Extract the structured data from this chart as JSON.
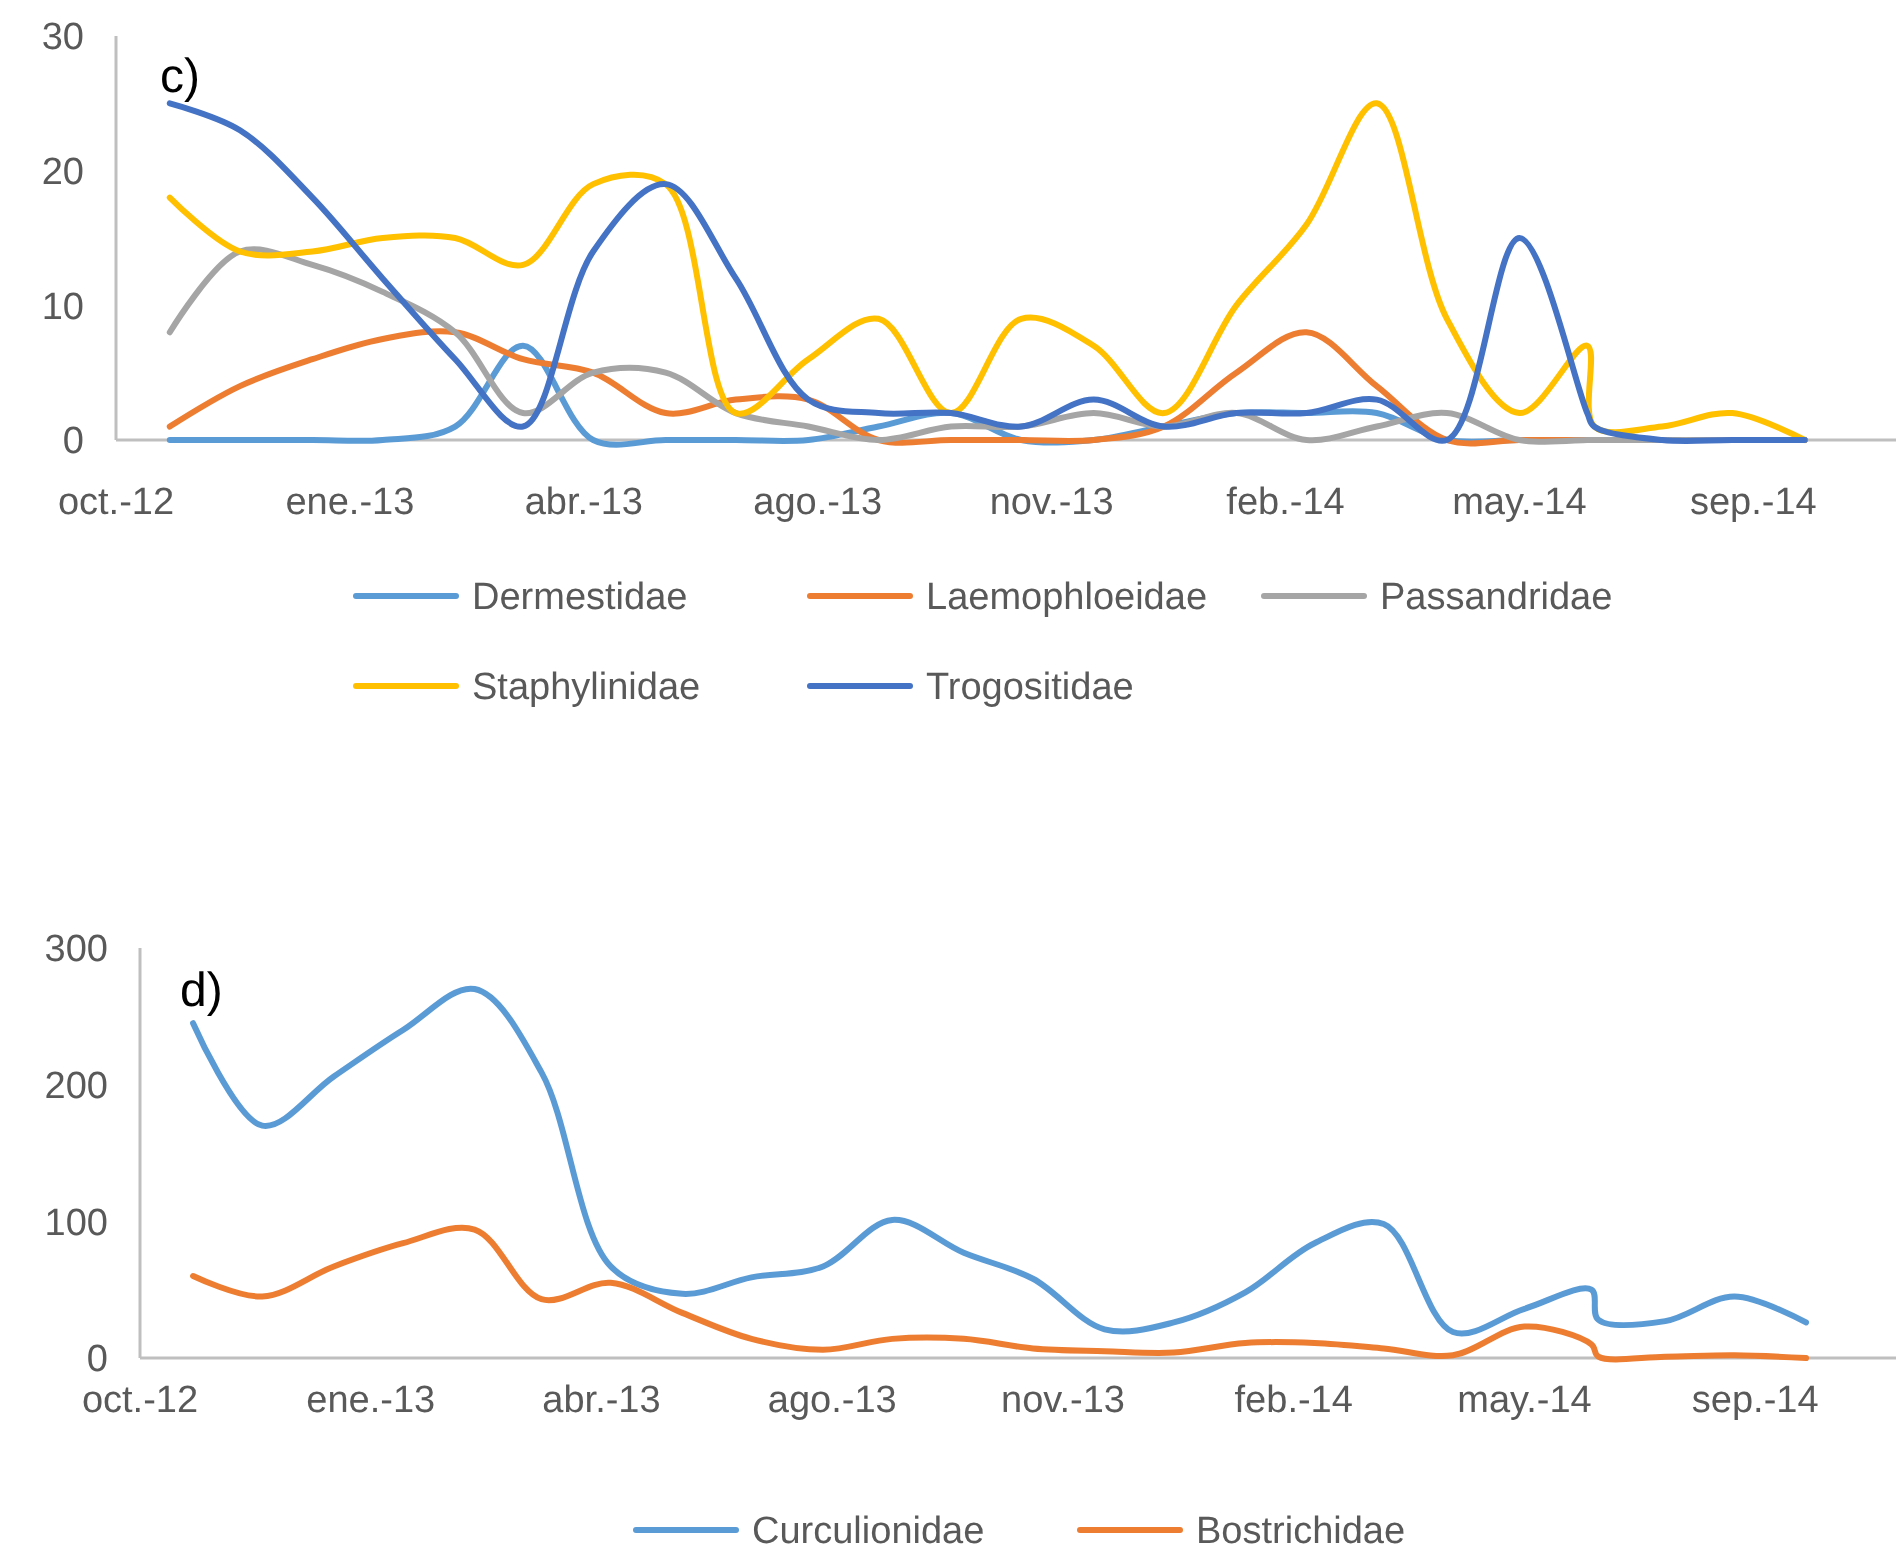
{
  "chart_data": [
    {
      "type": "line",
      "title": "c)",
      "x": [
        "2012-10-29",
        "2012-11-28",
        "2012-12-29",
        "2013-01-28",
        "2013-02-28",
        "2013-03-29",
        "2013-04-28",
        "2013-05-29",
        "2013-06-28",
        "2013-07-29",
        "2013-08-28",
        "2013-09-28",
        "2013-10-28",
        "2013-11-28",
        "2013-12-28",
        "2014-01-28",
        "2014-02-27",
        "2014-03-29",
        "2014-04-28",
        "2014-05-29",
        "2014-06-27",
        "2014-06-30",
        "2014-07-29",
        "2014-08-28",
        "2014-09-28"
      ],
      "series": [
        {
          "name": "Dermestidae",
          "color": "#5b9bd5",
          "values": [
            0,
            0,
            0,
            0,
            1,
            7,
            0,
            0,
            0,
            0,
            1,
            2,
            0,
            0,
            1,
            2,
            2,
            2,
            0,
            0,
            0,
            0,
            0,
            0,
            0
          ]
        },
        {
          "name": "Laemophloeidae",
          "color": "#ed7d31",
          "values": [
            1,
            4,
            6,
            7.5,
            8,
            6,
            5,
            2,
            3,
            3,
            0,
            0,
            0,
            0,
            1,
            5,
            8,
            4,
            0,
            0,
            0,
            0,
            0,
            0,
            0
          ]
        },
        {
          "name": "Passandridae",
          "color": "#a5a5a5",
          "values": [
            8,
            14,
            13,
            11,
            8,
            2,
            5,
            5,
            2,
            1,
            0,
            1,
            1,
            2,
            1,
            2,
            0,
            1,
            2,
            0,
            0,
            0,
            0,
            0,
            0
          ]
        },
        {
          "name": "Staphylinidae",
          "color": "#ffc000",
          "values": [
            18,
            14,
            14,
            15,
            15,
            13,
            19,
            19,
            2,
            6,
            9,
            2,
            9,
            7,
            2,
            10,
            16,
            25,
            9,
            2,
            7,
            1,
            1,
            2,
            0
          ]
        },
        {
          "name": "Trogositidae",
          "color": "#4472c4",
          "values": [
            25,
            23,
            18,
            12,
            6,
            1,
            14,
            19,
            12,
            3,
            2,
            2,
            1,
            3,
            1,
            2,
            2,
            3,
            0,
            15,
            2,
            1,
            0,
            0,
            0
          ]
        }
      ],
      "xlim": [
        "2012-10-06",
        "2014-11-06"
      ],
      "xticks": [
        {
          "value": "2012-10-06",
          "label": "oct.-12"
        },
        {
          "value": "2013-01-14",
          "label": "ene.-13"
        },
        {
          "value": "2013-04-24",
          "label": "abr.-13"
        },
        {
          "value": "2013-08-02",
          "label": "ago.-13"
        },
        {
          "value": "2013-11-10",
          "label": "nov.-13"
        },
        {
          "value": "2014-02-18",
          "label": "feb.-14"
        },
        {
          "value": "2014-05-29",
          "label": "may.-14"
        },
        {
          "value": "2014-09-06",
          "label": "sep.-14"
        }
      ],
      "ylim": [
        0,
        30
      ],
      "yticks": [
        0,
        10,
        20,
        30
      ],
      "grid": false,
      "legend": "bottom",
      "marker": "none",
      "line_style": "solid"
    },
    {
      "type": "line",
      "title": "d)",
      "x": [
        "2012-10-29",
        "2012-11-28",
        "2012-12-29",
        "2013-01-28",
        "2013-02-28",
        "2013-03-29",
        "2013-04-28",
        "2013-05-29",
        "2013-06-28",
        "2013-07-29",
        "2013-08-28",
        "2013-09-28",
        "2013-10-28",
        "2013-11-28",
        "2013-12-28",
        "2014-01-28",
        "2014-02-27",
        "2014-03-29",
        "2014-04-28",
        "2014-05-29",
        "2014-06-27",
        "2014-06-30",
        "2014-07-29",
        "2014-08-28",
        "2014-09-28"
      ],
      "series": [
        {
          "name": "Curculionidae",
          "color": "#5b9bd5",
          "values": [
            245,
            170,
            206,
            240,
            270,
            209,
            67,
            47,
            59,
            67,
            101,
            77,
            58,
            21,
            26,
            48,
            84,
            98,
            19,
            36,
            50,
            28,
            27,
            45,
            26
          ]
        },
        {
          "name": "Bostrichidae",
          "color": "#ed7d31",
          "values": [
            60,
            45,
            67,
            84,
            94,
            43,
            55,
            33,
            14,
            6,
            14,
            14,
            7,
            5,
            4,
            11,
            11,
            7,
            2,
            23,
            10,
            1,
            1,
            2,
            0
          ]
        }
      ],
      "xlim": [
        "2012-10-06",
        "2014-11-06"
      ],
      "xticks": [
        {
          "value": "2012-10-06",
          "label": "oct.-12"
        },
        {
          "value": "2013-01-14",
          "label": "ene.-13"
        },
        {
          "value": "2013-04-24",
          "label": "abr.-13"
        },
        {
          "value": "2013-08-02",
          "label": "ago.-13"
        },
        {
          "value": "2013-11-10",
          "label": "nov.-13"
        },
        {
          "value": "2014-02-18",
          "label": "feb.-14"
        },
        {
          "value": "2014-05-29",
          "label": "may.-14"
        },
        {
          "value": "2014-09-06",
          "label": "sep.-14"
        }
      ],
      "ylim": [
        0,
        300
      ],
      "yticks": [
        0,
        100,
        200,
        300
      ],
      "grid": false,
      "legend": "bottom",
      "marker": "none",
      "line_style": "solid"
    }
  ]
}
